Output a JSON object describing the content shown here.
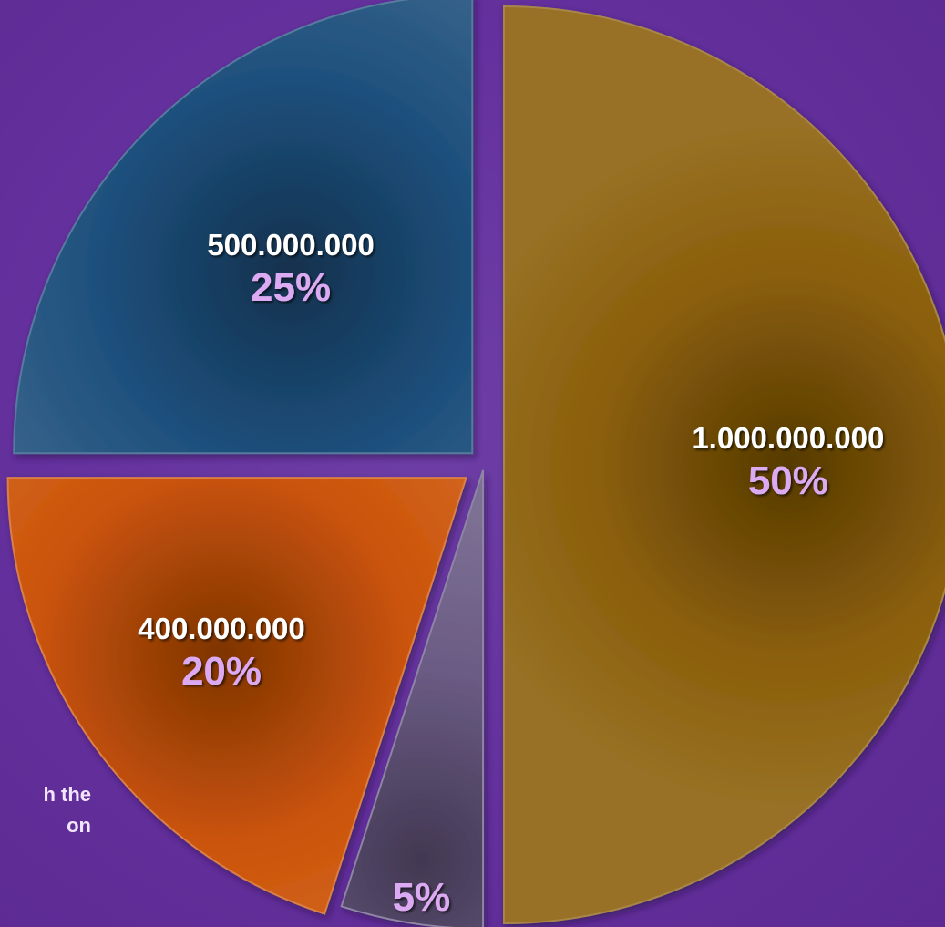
{
  "side_note": "h the\non",
  "chart_data": {
    "type": "pie",
    "title": "",
    "slices": [
      {
        "label": "1.000.000.000",
        "value": 1000000000,
        "percent_label": "50%",
        "color": "#8a5e08"
      },
      {
        "label": "",
        "value": 100000000,
        "percent_label": "5%",
        "color": "#6a5b84"
      },
      {
        "label": "400.000.000",
        "value": 400000000,
        "percent_label": "20%",
        "color": "#cc5408"
      },
      {
        "label": "500.000.000",
        "value": 500000000,
        "percent_label": "25%",
        "color": "#1d4f7c"
      }
    ],
    "start": "top",
    "direction": "clockwise",
    "exploded": true
  }
}
